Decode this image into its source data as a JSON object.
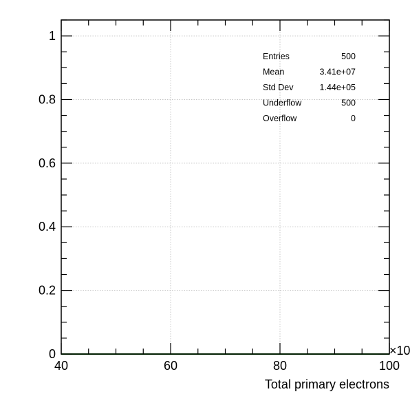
{
  "chart_data": {
    "type": "bar",
    "title": "",
    "xlabel": "Total primary electrons",
    "ylabel": "",
    "x_multiplier_label": "×10",
    "xlim": [
      40,
      100
    ],
    "ylim": [
      0,
      1.05
    ],
    "x_major_ticks": [
      40,
      60,
      80,
      100
    ],
    "x_tick_labels": [
      "40",
      "60",
      "80",
      "100"
    ],
    "x_minor_step": 5,
    "y_major_ticks": [
      0,
      0.2,
      0.4,
      0.6,
      0.8,
      1
    ],
    "y_tick_labels": [
      "0",
      "0.2",
      "0.4",
      "0.6",
      "0.8",
      "1"
    ],
    "y_minor_step": 0.05,
    "grid": true,
    "series": [
      {
        "x": [
          40,
          100
        ],
        "values": [
          0,
          0
        ],
        "color": "#007700"
      }
    ],
    "stats_box": {
      "placement": "top-right",
      "rows": [
        {
          "label": "Entries",
          "value": "500"
        },
        {
          "label": "Mean",
          "value": "3.41e+07"
        },
        {
          "label": "Std Dev",
          "value": "1.44e+05"
        },
        {
          "label": "Underflow",
          "value": "500"
        },
        {
          "label": "Overflow",
          "value": "0"
        }
      ]
    }
  }
}
